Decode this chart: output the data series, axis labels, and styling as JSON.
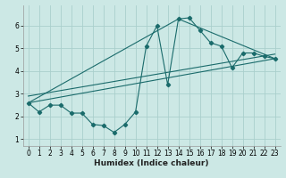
{
  "background_color": "#cce8e5",
  "grid_color": "#aacfcc",
  "line_color": "#1a6b6b",
  "marker_color": "#1a6b6b",
  "xlabel": "Humidex (Indice chaleur)",
  "xlim": [
    -0.5,
    23.5
  ],
  "ylim": [
    0.7,
    6.9
  ],
  "yticks": [
    1,
    2,
    3,
    4,
    5,
    6
  ],
  "xticks": [
    0,
    1,
    2,
    3,
    4,
    5,
    6,
    7,
    8,
    9,
    10,
    11,
    12,
    13,
    14,
    15,
    16,
    17,
    18,
    19,
    20,
    21,
    22,
    23
  ],
  "line1_x": [
    0,
    1,
    2,
    3,
    4,
    5,
    6,
    7,
    8,
    9,
    10,
    11,
    12,
    13,
    14,
    15,
    16,
    17,
    18,
    19,
    20,
    21,
    22,
    23
  ],
  "line1_y": [
    2.6,
    2.2,
    2.5,
    2.5,
    2.15,
    2.15,
    1.65,
    1.6,
    1.3,
    1.65,
    2.2,
    5.1,
    6.0,
    3.4,
    6.3,
    6.35,
    5.8,
    5.25,
    5.1,
    4.15,
    4.8,
    4.8,
    4.65,
    4.55
  ],
  "line2_x": [
    0,
    14,
    23
  ],
  "line2_y": [
    2.6,
    6.3,
    4.55
  ],
  "line3_x": [
    0,
    23
  ],
  "line3_y": [
    2.6,
    4.55
  ],
  "line4_x": [
    0,
    23
  ],
  "line4_y": [
    2.9,
    4.75
  ]
}
